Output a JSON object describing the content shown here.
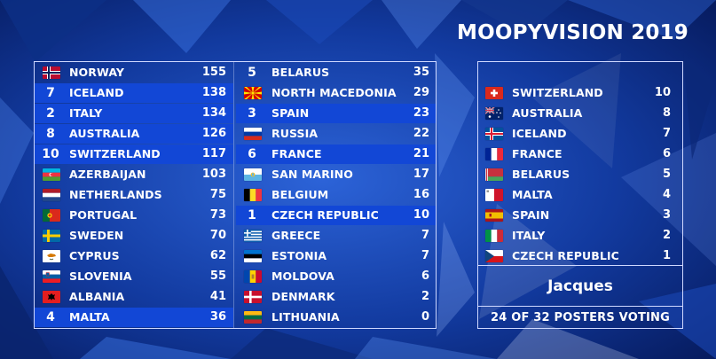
{
  "header": {
    "title": "MOOPYVISION 2019"
  },
  "scoreboard": {
    "column_a": [
      {
        "rank": "",
        "country": "NORWAY",
        "points": "155",
        "flag": "norway-flag-icon",
        "highlight": false
      },
      {
        "rank": "7",
        "country": "ICELAND",
        "points": "138",
        "flag": "",
        "highlight": true
      },
      {
        "rank": "2",
        "country": "ITALY",
        "points": "134",
        "flag": "",
        "highlight": true
      },
      {
        "rank": "8",
        "country": "AUSTRALIA",
        "points": "126",
        "flag": "",
        "highlight": true
      },
      {
        "rank": "10",
        "country": "SWITZERLAND",
        "points": "117",
        "flag": "",
        "highlight": true
      },
      {
        "rank": "",
        "country": "AZERBAIJAN",
        "points": "103",
        "flag": "azerbaijan-flag-icon",
        "highlight": false
      },
      {
        "rank": "",
        "country": "NETHERLANDS",
        "points": "75",
        "flag": "netherlands-flag-icon",
        "highlight": false
      },
      {
        "rank": "",
        "country": "PORTUGAL",
        "points": "73",
        "flag": "portugal-flag-icon",
        "highlight": false
      },
      {
        "rank": "",
        "country": "SWEDEN",
        "points": "70",
        "flag": "sweden-flag-icon",
        "highlight": false
      },
      {
        "rank": "",
        "country": "CYPRUS",
        "points": "62",
        "flag": "cyprus-flag-icon",
        "highlight": false
      },
      {
        "rank": "",
        "country": "SLOVENIA",
        "points": "55",
        "flag": "slovenia-flag-icon",
        "highlight": false
      },
      {
        "rank": "",
        "country": "ALBANIA",
        "points": "41",
        "flag": "albania-flag-icon",
        "highlight": false
      },
      {
        "rank": "4",
        "country": "MALTA",
        "points": "36",
        "flag": "",
        "highlight": true
      }
    ],
    "column_b": [
      {
        "rank": "5",
        "country": "BELARUS",
        "points": "35",
        "flag": "",
        "highlight": false
      },
      {
        "rank": "",
        "country": "NORTH MACEDONIA",
        "points": "29",
        "flag": "north-macedonia-flag-icon",
        "highlight": false
      },
      {
        "rank": "3",
        "country": "SPAIN",
        "points": "23",
        "flag": "",
        "highlight": true
      },
      {
        "rank": "",
        "country": "RUSSIA",
        "points": "22",
        "flag": "russia-flag-icon",
        "highlight": false
      },
      {
        "rank": "6",
        "country": "FRANCE",
        "points": "21",
        "flag": "",
        "highlight": true
      },
      {
        "rank": "",
        "country": "SAN MARINO",
        "points": "17",
        "flag": "san-marino-flag-icon",
        "highlight": false
      },
      {
        "rank": "",
        "country": "BELGIUM",
        "points": "16",
        "flag": "belgium-flag-icon",
        "highlight": false
      },
      {
        "rank": "1",
        "country": "CZECH REPUBLIC",
        "points": "10",
        "flag": "",
        "highlight": true
      },
      {
        "rank": "",
        "country": "GREECE",
        "points": "7",
        "flag": "greece-flag-icon",
        "highlight": false
      },
      {
        "rank": "",
        "country": "ESTONIA",
        "points": "7",
        "flag": "estonia-flag-icon",
        "highlight": false
      },
      {
        "rank": "",
        "country": "MOLDOVA",
        "points": "6",
        "flag": "moldova-flag-icon",
        "highlight": false
      },
      {
        "rank": "",
        "country": "DENMARK",
        "points": "2",
        "flag": "denmark-flag-icon",
        "highlight": false
      },
      {
        "rank": "",
        "country": "LITHUANIA",
        "points": "0",
        "flag": "lithuania-flag-icon",
        "highlight": false
      }
    ]
  },
  "votes_panel": {
    "votes": [
      {
        "country": "SWITZERLAND",
        "points": "10",
        "flag": "switzerland-flag-icon"
      },
      {
        "country": "AUSTRALIA",
        "points": "8",
        "flag": "australia-flag-icon"
      },
      {
        "country": "ICELAND",
        "points": "7",
        "flag": "iceland-flag-icon"
      },
      {
        "country": "FRANCE",
        "points": "6",
        "flag": "france-flag-icon"
      },
      {
        "country": "BELARUS",
        "points": "5",
        "flag": "belarus-flag-icon"
      },
      {
        "country": "MALTA",
        "points": "4",
        "flag": "malta-flag-icon"
      },
      {
        "country": "SPAIN",
        "points": "3",
        "flag": "spain-flag-icon"
      },
      {
        "country": "ITALY",
        "points": "2",
        "flag": "italy-flag-icon"
      },
      {
        "country": "CZECH REPUBLIC",
        "points": "1",
        "flag": "czech-republic-flag-icon"
      }
    ],
    "voter_name": "Jacques",
    "voting_status": "24 OF 32 POSTERS VOTING"
  },
  "colors": {
    "highlight": "#1247d6",
    "panel_border": "#cfd8ff",
    "background": "#0a2a8a"
  }
}
